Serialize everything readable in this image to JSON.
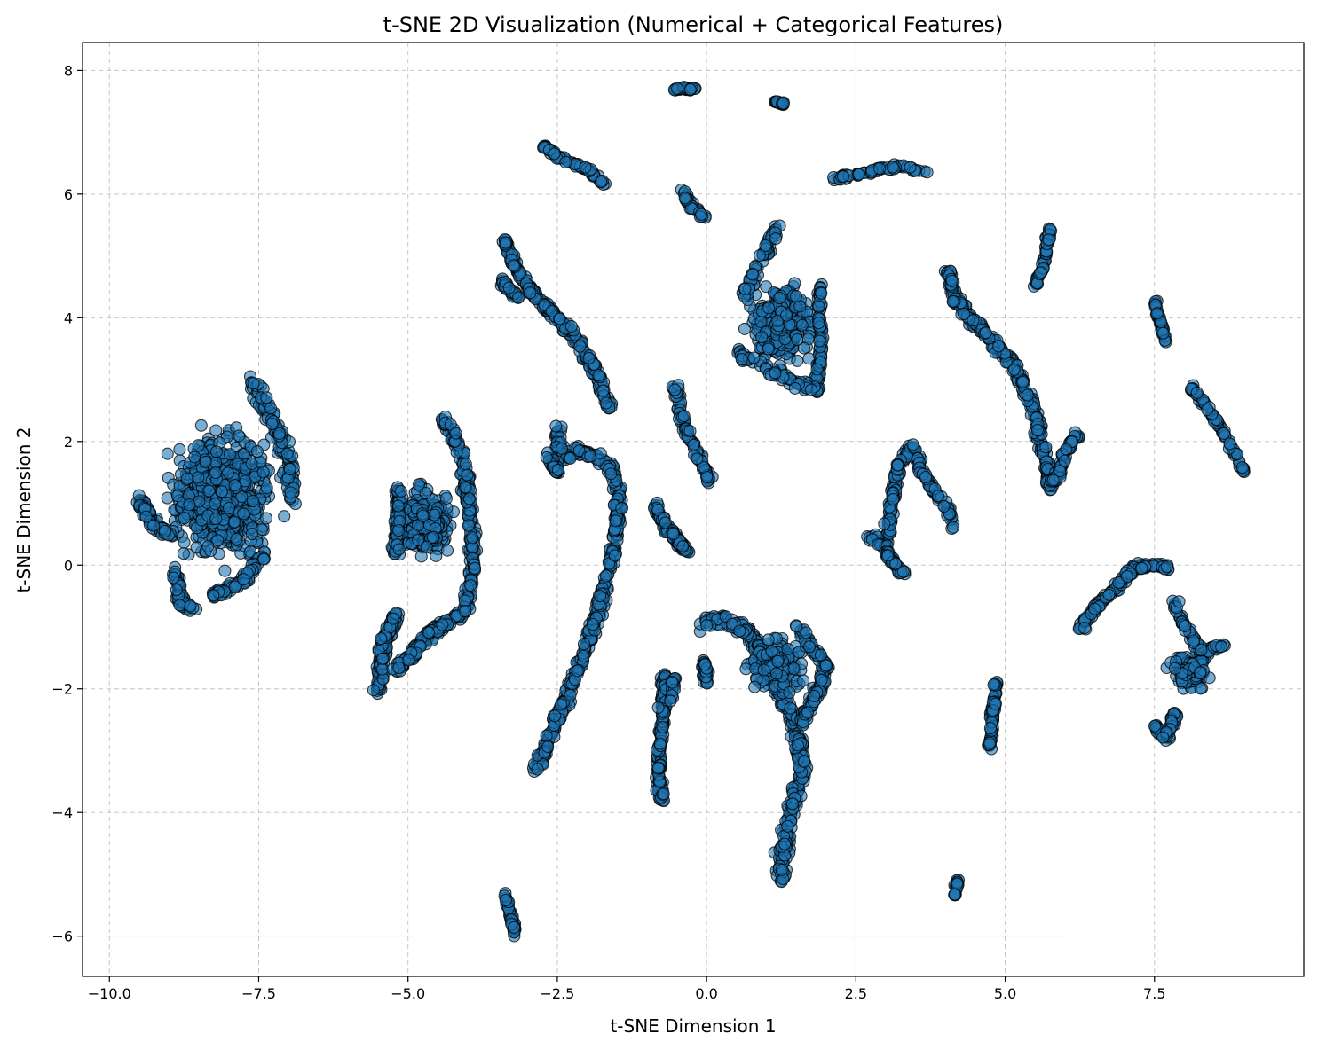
{
  "chart_data": {
    "type": "scatter",
    "title": "t-SNE 2D Visualization (Numerical + Categorical Features)",
    "xlabel": "t-SNE Dimension 1",
    "ylabel": "t-SNE Dimension 2",
    "xlim": [
      -10.45,
      10.0
    ],
    "ylim": [
      -6.65,
      8.45
    ],
    "xticks": [
      -10.0,
      -7.5,
      -5.0,
      -2.5,
      0.0,
      2.5,
      5.0,
      7.5
    ],
    "xtick_labels": [
      "−10.0",
      "−7.5",
      "−5.0",
      "−2.5",
      "0.0",
      "2.5",
      "5.0",
      "7.5"
    ],
    "yticks": [
      -6,
      -4,
      -2,
      0,
      2,
      4,
      6,
      8
    ],
    "ytick_labels": [
      "−6",
      "−4",
      "−2",
      "0",
      "2",
      "4",
      "6",
      "8"
    ],
    "grid": true,
    "marker_color": "#1f77b4",
    "marker_edge_color": "#000000",
    "marker_alpha": 0.6,
    "clusters": [
      {
        "shape": "blob",
        "center": [
          -8.1,
          1.1
        ],
        "spread": [
          0.9,
          1.0
        ],
        "n": 900
      },
      {
        "shape": "path",
        "points": [
          [
            -9.5,
            1.05
          ],
          [
            -9.2,
            0.6
          ],
          [
            -8.95,
            0.5
          ]
        ],
        "jitter": 0.08,
        "n": 80
      },
      {
        "shape": "path",
        "points": [
          [
            -8.9,
            -0.1
          ],
          [
            -8.8,
            -0.6
          ],
          [
            -8.6,
            -0.7
          ]
        ],
        "jitter": 0.07,
        "n": 60
      },
      {
        "shape": "path",
        "points": [
          [
            -7.6,
            3.0
          ],
          [
            -7.3,
            2.4
          ],
          [
            -7.0,
            1.7
          ],
          [
            -6.95,
            1.0
          ]
        ],
        "jitter": 0.12,
        "n": 120
      },
      {
        "shape": "path",
        "points": [
          [
            -8.3,
            -0.5
          ],
          [
            -7.8,
            -0.3
          ],
          [
            -7.4,
            0.2
          ]
        ],
        "jitter": 0.08,
        "n": 70
      },
      {
        "shape": "blob",
        "center": [
          -4.7,
          0.7
        ],
        "spread": [
          0.45,
          0.55
        ],
        "n": 320
      },
      {
        "shape": "path",
        "points": [
          [
            -5.15,
            1.2
          ],
          [
            -5.2,
            0.2
          ]
        ],
        "jitter": 0.07,
        "n": 80
      },
      {
        "shape": "path",
        "points": [
          [
            -4.4,
            2.35
          ],
          [
            -4.1,
            1.8
          ],
          [
            -3.95,
            0.8
          ],
          [
            -3.9,
            0.0
          ],
          [
            -4.05,
            -0.75
          ],
          [
            -4.3,
            -0.9
          ]
        ],
        "jitter": 0.08,
        "n": 220
      },
      {
        "shape": "path",
        "points": [
          [
            -5.5,
            -2.05
          ],
          [
            -5.4,
            -1.2
          ],
          [
            -5.2,
            -0.8
          ]
        ],
        "jitter": 0.08,
        "n": 130
      },
      {
        "shape": "path",
        "points": [
          [
            -5.2,
            -1.7
          ],
          [
            -4.9,
            -1.4
          ],
          [
            -4.6,
            -1.1
          ],
          [
            -4.35,
            -0.9
          ]
        ],
        "jitter": 0.1,
        "n": 120
      },
      {
        "shape": "path",
        "points": [
          [
            -3.4,
            5.3
          ],
          [
            -3.2,
            4.8
          ],
          [
            -2.9,
            4.4
          ],
          [
            -2.5,
            4.0
          ],
          [
            -2.1,
            3.55
          ],
          [
            -1.8,
            3.0
          ],
          [
            -1.6,
            2.5
          ]
        ],
        "jitter": 0.07,
        "n": 260
      },
      {
        "shape": "path",
        "points": [
          [
            -3.45,
            4.6
          ],
          [
            -3.15,
            4.3
          ]
        ],
        "jitter": 0.05,
        "n": 40
      },
      {
        "shape": "path",
        "points": [
          [
            -2.75,
            6.8
          ],
          [
            -2.5,
            6.6
          ],
          [
            -2.0,
            6.4
          ],
          [
            -1.7,
            6.15
          ]
        ],
        "jitter": 0.04,
        "n": 70
      },
      {
        "shape": "path",
        "points": [
          [
            -0.55,
            7.7
          ],
          [
            -0.2,
            7.7
          ]
        ],
        "jitter": 0.03,
        "n": 30
      },
      {
        "shape": "path",
        "points": [
          [
            1.15,
            7.5
          ],
          [
            1.3,
            7.45
          ]
        ],
        "jitter": 0.02,
        "n": 20
      },
      {
        "shape": "path",
        "points": [
          [
            -0.4,
            6.05
          ],
          [
            -0.25,
            5.8
          ],
          [
            0.0,
            5.6
          ]
        ],
        "jitter": 0.04,
        "n": 30
      },
      {
        "shape": "path",
        "points": [
          [
            2.1,
            6.25
          ],
          [
            2.5,
            6.3
          ],
          [
            2.9,
            6.4
          ],
          [
            3.2,
            6.45
          ],
          [
            3.7,
            6.35
          ]
        ],
        "jitter": 0.04,
        "n": 60
      },
      {
        "shape": "path",
        "points": [
          [
            -2.5,
            2.25
          ],
          [
            -2.45,
            1.7
          ],
          [
            -2.1,
            1.85
          ],
          [
            -1.6,
            1.6
          ],
          [
            -1.45,
            1.1
          ],
          [
            -1.55,
            0.3
          ],
          [
            -1.7,
            -0.3
          ],
          [
            -1.95,
            -1.2
          ],
          [
            -2.2,
            -1.8
          ],
          [
            -2.55,
            -2.6
          ],
          [
            -2.85,
            -3.3
          ]
        ],
        "jitter": 0.08,
        "n": 420
      },
      {
        "shape": "path",
        "points": [
          [
            -2.65,
            1.8
          ],
          [
            -2.5,
            1.5
          ]
        ],
        "jitter": 0.05,
        "n": 30
      },
      {
        "shape": "path",
        "points": [
          [
            -0.55,
            3.0
          ],
          [
            -0.4,
            2.3
          ],
          [
            -0.2,
            1.9
          ],
          [
            0.05,
            1.35
          ]
        ],
        "jitter": 0.06,
        "n": 80
      },
      {
        "shape": "path",
        "points": [
          [
            -0.9,
            1.0
          ],
          [
            -0.6,
            0.5
          ],
          [
            -0.3,
            0.2
          ]
        ],
        "jitter": 0.06,
        "n": 70
      },
      {
        "shape": "path",
        "points": [
          [
            -0.6,
            0.55
          ],
          [
            -0.35,
            0.25
          ]
        ],
        "jitter": 0.05,
        "n": 30
      },
      {
        "shape": "path",
        "points": [
          [
            -0.7,
            -1.8
          ],
          [
            -0.75,
            -2.6
          ],
          [
            -0.8,
            -3.3
          ],
          [
            -0.75,
            -3.85
          ]
        ],
        "jitter": 0.06,
        "n": 160
      },
      {
        "shape": "path",
        "points": [
          [
            -0.55,
            -1.8
          ],
          [
            -0.6,
            -2.2
          ]
        ],
        "jitter": 0.04,
        "n": 20
      },
      {
        "shape": "blob",
        "center": [
          1.25,
          3.9
        ],
        "spread": [
          0.5,
          0.65
        ],
        "n": 380
      },
      {
        "shape": "path",
        "points": [
          [
            0.6,
            4.3
          ],
          [
            0.9,
            4.9
          ],
          [
            1.2,
            5.5
          ]
        ],
        "jitter": 0.08,
        "n": 60
      },
      {
        "shape": "path",
        "points": [
          [
            1.9,
            4.5
          ],
          [
            1.9,
            3.5
          ],
          [
            1.85,
            2.8
          ]
        ],
        "jitter": 0.06,
        "n": 80
      },
      {
        "shape": "path",
        "points": [
          [
            0.55,
            3.4
          ],
          [
            1.1,
            3.1
          ],
          [
            1.8,
            2.85
          ]
        ],
        "jitter": 0.08,
        "n": 60
      },
      {
        "shape": "path",
        "points": [
          [
            -0.1,
            -1.0
          ],
          [
            0.3,
            -0.85
          ],
          [
            0.7,
            -1.1
          ],
          [
            1.0,
            -1.6
          ],
          [
            1.3,
            -2.2
          ],
          [
            1.5,
            -2.6
          ],
          [
            1.6,
            -3.3
          ],
          [
            1.4,
            -4.0
          ],
          [
            1.25,
            -4.8
          ],
          [
            1.25,
            -5.05
          ]
        ],
        "jitter": 0.1,
        "n": 380
      },
      {
        "shape": "blob",
        "center": [
          1.2,
          -1.6
        ],
        "spread": [
          0.45,
          0.45
        ],
        "n": 200
      },
      {
        "shape": "path",
        "points": [
          [
            1.5,
            -0.95
          ],
          [
            1.8,
            -1.4
          ],
          [
            2.0,
            -1.6
          ],
          [
            1.85,
            -2.1
          ],
          [
            1.6,
            -2.5
          ]
        ],
        "jitter": 0.08,
        "n": 120
      },
      {
        "shape": "path",
        "points": [
          [
            -0.05,
            -1.55
          ],
          [
            0.0,
            -1.9
          ]
        ],
        "jitter": 0.05,
        "n": 30
      },
      {
        "shape": "path",
        "points": [
          [
            2.75,
            0.45
          ],
          [
            3.0,
            0.3
          ],
          [
            3.1,
            1.0
          ],
          [
            3.2,
            1.6
          ],
          [
            3.45,
            1.95
          ],
          [
            3.6,
            1.5
          ],
          [
            3.8,
            1.2
          ],
          [
            4.05,
            0.9
          ],
          [
            4.15,
            0.6
          ]
        ],
        "jitter": 0.06,
        "n": 180
      },
      {
        "shape": "path",
        "points": [
          [
            3.0,
            0.25
          ],
          [
            3.2,
            -0.05
          ],
          [
            3.3,
            -0.15
          ]
        ],
        "jitter": 0.05,
        "n": 40
      },
      {
        "shape": "path",
        "points": [
          [
            4.05,
            4.8
          ],
          [
            4.1,
            4.4
          ],
          [
            4.4,
            4.0
          ],
          [
            4.8,
            3.6
          ],
          [
            5.1,
            3.3
          ],
          [
            5.3,
            2.9
          ],
          [
            5.5,
            2.5
          ],
          [
            5.6,
            2.0
          ],
          [
            5.7,
            1.6
          ],
          [
            5.75,
            1.2
          ]
        ],
        "jitter": 0.08,
        "n": 280
      },
      {
        "shape": "path",
        "points": [
          [
            5.75,
            1.3
          ],
          [
            5.9,
            1.5
          ],
          [
            6.0,
            1.8
          ],
          [
            6.2,
            2.1
          ]
        ],
        "jitter": 0.06,
        "n": 60
      },
      {
        "shape": "path",
        "points": [
          [
            5.5,
            4.5
          ],
          [
            5.65,
            4.9
          ],
          [
            5.75,
            5.45
          ]
        ],
        "jitter": 0.04,
        "n": 50
      },
      {
        "shape": "path",
        "points": [
          [
            7.5,
            4.3
          ],
          [
            7.6,
            3.9
          ],
          [
            7.7,
            3.6
          ]
        ],
        "jitter": 0.03,
        "n": 40
      },
      {
        "shape": "path",
        "points": [
          [
            8.1,
            2.9
          ],
          [
            8.5,
            2.4
          ],
          [
            8.8,
            1.9
          ],
          [
            9.0,
            1.5
          ]
        ],
        "jitter": 0.04,
        "n": 70
      },
      {
        "shape": "path",
        "points": [
          [
            4.75,
            -2.95
          ],
          [
            4.8,
            -2.3
          ],
          [
            4.85,
            -1.9
          ]
        ],
        "jitter": 0.04,
        "n": 60
      },
      {
        "shape": "path",
        "points": [
          [
            4.15,
            -5.35
          ],
          [
            4.2,
            -5.1
          ]
        ],
        "jitter": 0.03,
        "n": 20
      },
      {
        "shape": "path",
        "points": [
          [
            -3.4,
            -5.3
          ],
          [
            -3.3,
            -5.6
          ],
          [
            -3.2,
            -6.0
          ]
        ],
        "jitter": 0.04,
        "n": 40
      },
      {
        "shape": "path",
        "points": [
          [
            6.25,
            -1.0
          ],
          [
            6.6,
            -0.6
          ],
          [
            6.9,
            -0.35
          ],
          [
            7.1,
            -0.05
          ],
          [
            7.5,
            0.0
          ],
          [
            7.75,
            -0.05
          ]
        ],
        "jitter": 0.07,
        "n": 120
      },
      {
        "shape": "blob",
        "center": [
          8.1,
          -1.7
        ],
        "spread": [
          0.35,
          0.3
        ],
        "n": 140
      },
      {
        "shape": "path",
        "points": [
          [
            7.85,
            -0.6
          ],
          [
            8.0,
            -1.0
          ],
          [
            8.3,
            -1.4
          ],
          [
            8.65,
            -1.3
          ]
        ],
        "jitter": 0.06,
        "n": 60
      },
      {
        "shape": "path",
        "points": [
          [
            7.5,
            -2.6
          ],
          [
            7.7,
            -2.8
          ],
          [
            7.85,
            -2.4
          ]
        ],
        "jitter": 0.06,
        "n": 60
      }
    ]
  }
}
